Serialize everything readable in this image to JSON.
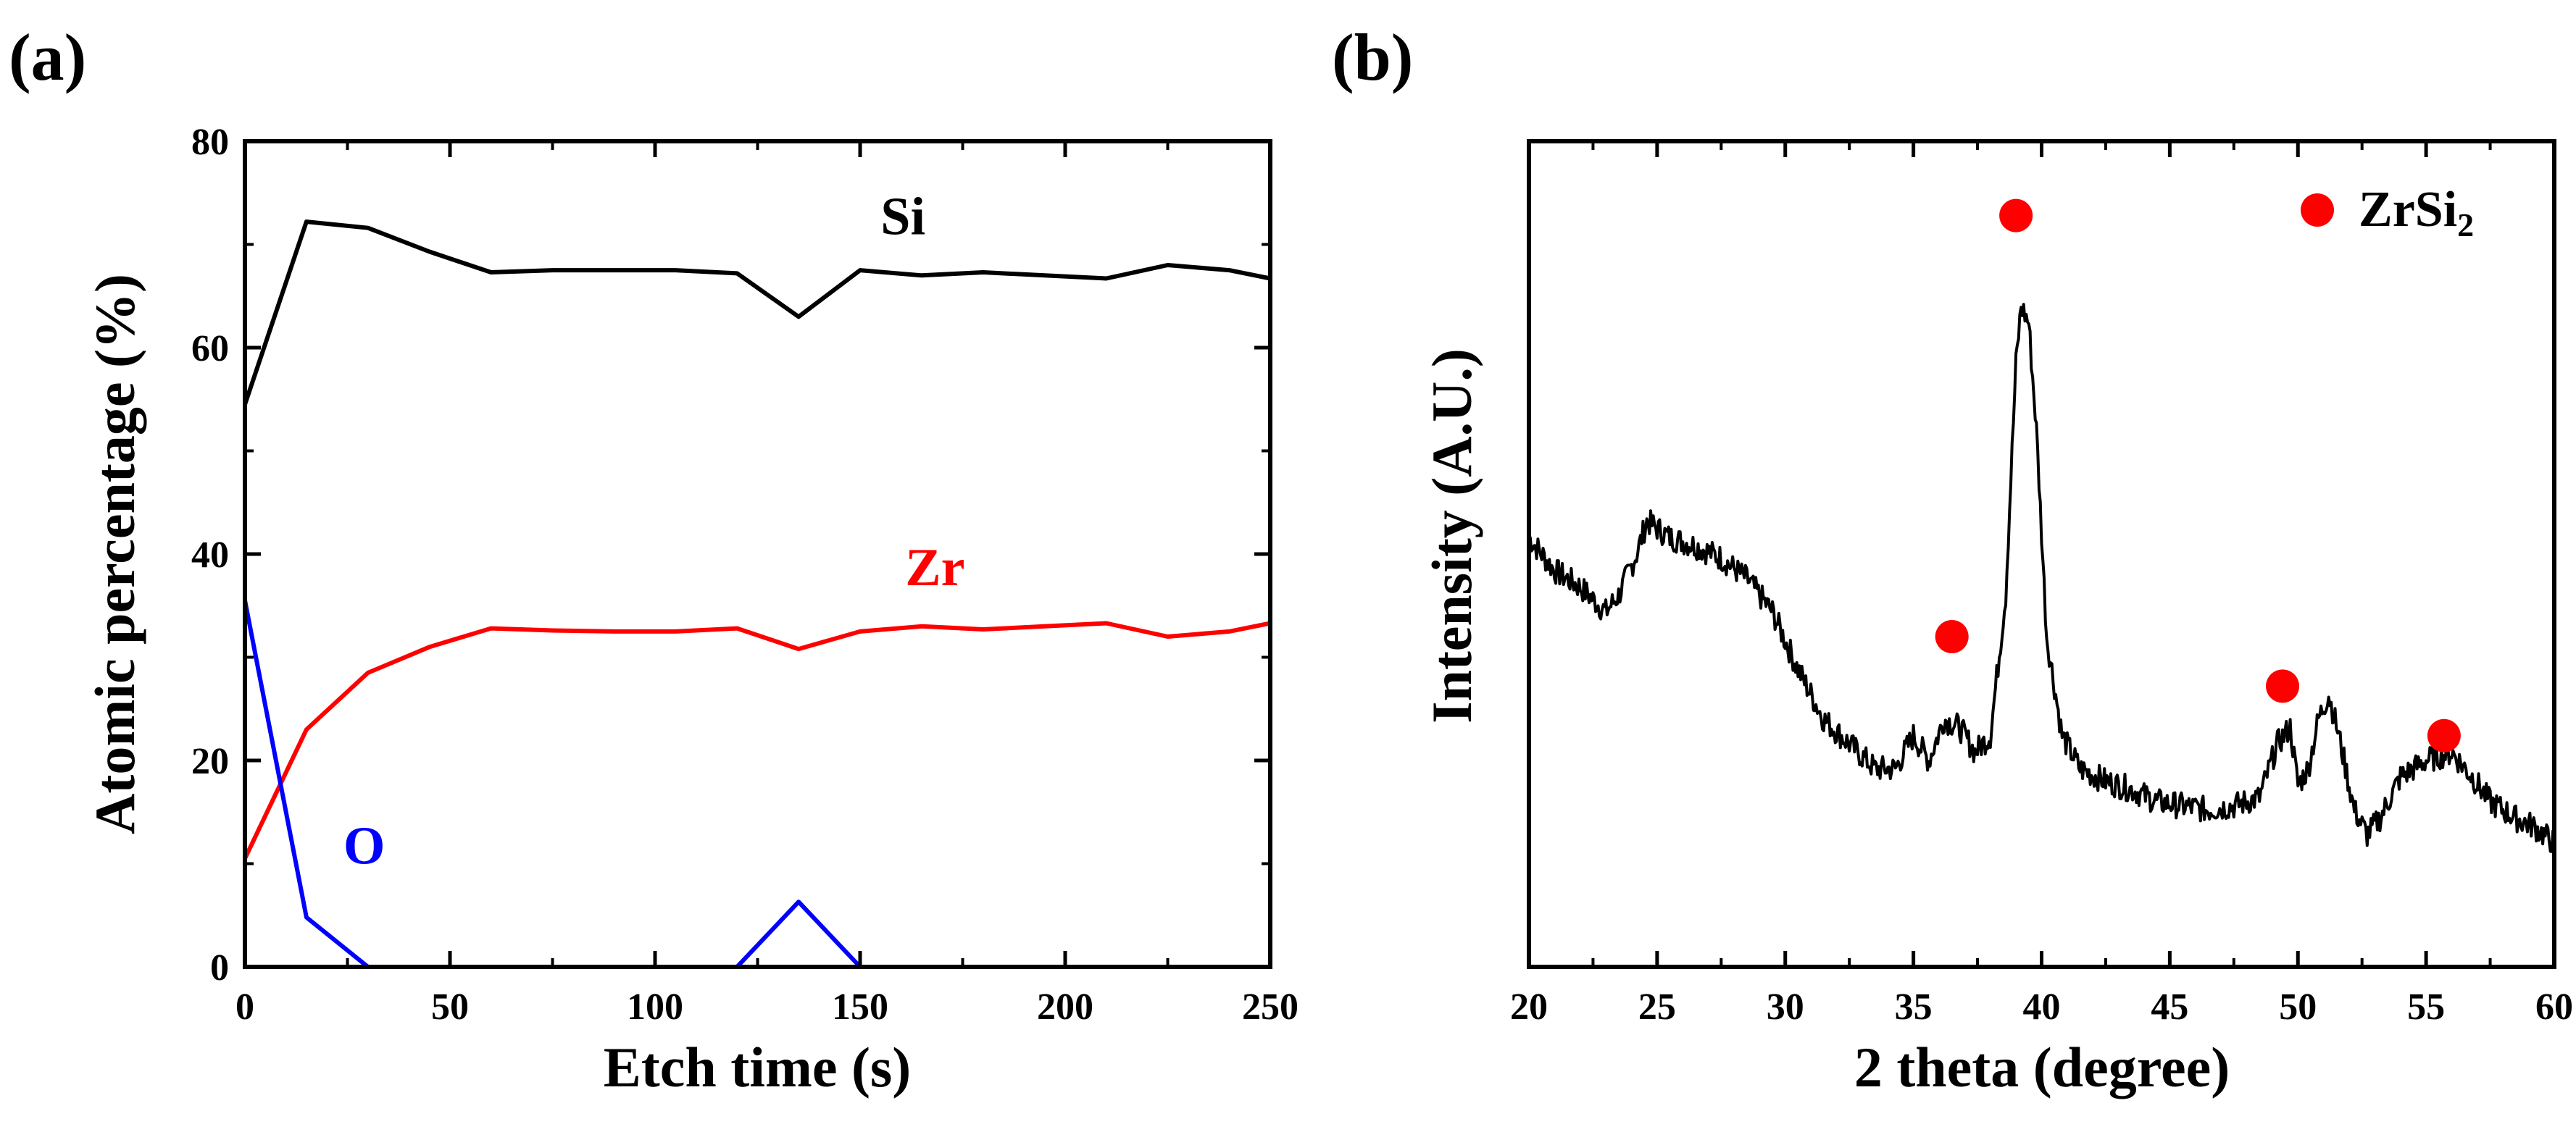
{
  "colors": {
    "si": "#000000",
    "zr": "#ff0000",
    "o": "#0000ff",
    "xrd": "#000000",
    "marker": "#ff0000"
  },
  "chart_data": [
    {
      "panel_label": "(a)",
      "type": "line",
      "xlabel": "Etch time (s)",
      "ylabel": "Atomic percentage (%)",
      "xlim": [
        0,
        250
      ],
      "ylim": [
        0,
        80
      ],
      "xticks": [
        "0",
        "50",
        "100",
        "150",
        "200",
        "250"
      ],
      "yticks": [
        "0",
        "20",
        "40",
        "60",
        "80"
      ],
      "x": [
        0,
        15,
        30,
        45,
        60,
        75,
        90,
        105,
        120,
        135,
        150,
        165,
        180,
        195,
        210,
        225,
        240,
        250
      ],
      "series": [
        {
          "name": "Si",
          "color": "#000000",
          "label_at": [
            155,
            71
          ],
          "values": [
            54.5,
            72.2,
            71.6,
            69.3,
            67.3,
            67.5,
            67.5,
            67.5,
            67.2,
            63.0,
            67.5,
            67.0,
            67.3,
            67.0,
            66.7,
            68.0,
            67.5,
            66.7
          ]
        },
        {
          "name": "Zr",
          "color": "#ff0000",
          "label_at": [
            161,
            37
          ],
          "values": [
            10.5,
            23.0,
            28.5,
            31.0,
            32.8,
            32.6,
            32.5,
            32.5,
            32.8,
            30.8,
            32.5,
            33.0,
            32.7,
            33.0,
            33.3,
            32.0,
            32.5,
            33.3
          ]
        },
        {
          "name": "O",
          "color": "#0000ff",
          "label_at": [
            24,
            10
          ],
          "values": [
            35.5,
            4.8,
            0.0,
            0.0,
            0.0,
            0.0,
            0.0,
            0.0,
            0.0,
            6.3,
            0.0,
            0.0,
            0.0,
            0.0,
            0.0,
            0.0,
            0.0,
            0.0
          ]
        }
      ]
    },
    {
      "panel_label": "(b)",
      "type": "line",
      "xlabel": "2 theta (degree)",
      "ylabel": "Intensity (A.U.)",
      "xlim": [
        20,
        60
      ],
      "ylim": [
        0,
        100
      ],
      "xticks": [
        "20",
        "25",
        "30",
        "35",
        "40",
        "45",
        "50",
        "55",
        "60"
      ],
      "yticks": [],
      "legend": {
        "label": "ZrSi",
        "subscript": "2",
        "position": "top-right"
      },
      "x": [
        20,
        21,
        22,
        23,
        23.5,
        24.2,
        24.6,
        25.5,
        26.5,
        27.5,
        28.5,
        29.5,
        30.5,
        31.5,
        32.5,
        33.5,
        34.3,
        35.0,
        35.6,
        36.2,
        36.8,
        37.4,
        38.0,
        38.6,
        39.0,
        39.2,
        39.5,
        39.8,
        40.2,
        40.8,
        41.5,
        42.5,
        43.5,
        44.5,
        45.5,
        46.5,
        47.5,
        48.5,
        49.2,
        49.7,
        50.0,
        50.4,
        50.8,
        51.2,
        51.6,
        52.2,
        52.7,
        53.2,
        54.0,
        55.0,
        56.0,
        56.8,
        57.5,
        58.5,
        59.2,
        60
      ],
      "values": [
        52,
        48,
        46,
        43,
        45,
        50,
        54,
        52,
        51,
        49.5,
        47,
        43,
        36,
        30,
        27,
        24,
        24,
        28,
        25,
        30,
        29,
        26,
        28,
        45,
        73,
        80,
        78,
        65,
        40,
        28,
        24,
        22.5,
        21.5,
        20,
        19.5,
        19,
        19.5,
        20.5,
        27,
        29,
        22,
        24,
        30,
        33,
        28,
        19,
        16,
        18,
        23,
        25,
        26,
        23,
        20,
        18,
        17,
        15
      ],
      "peaks": [
        36.5,
        39.0,
        49.4,
        55.7
      ],
      "peak_marker_y": [
        40,
        91,
        34,
        28
      ]
    }
  ]
}
